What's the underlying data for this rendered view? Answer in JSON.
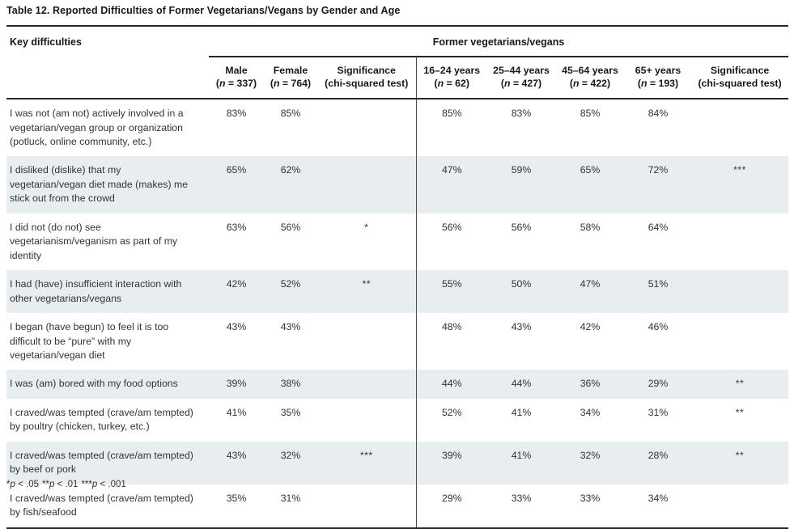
{
  "page": {
    "title": "Table 12. Reported Difficulties of Former Vegetarians/Vegans by Gender and Age",
    "footnote_items": [
      {
        "stars": "*",
        "condition": "p < .05"
      },
      {
        "stars": "**",
        "condition": "p < .01"
      },
      {
        "stars": "***",
        "condition": "p < .001"
      }
    ]
  },
  "table": {
    "row_header": "Key difficulties",
    "spanner": "Former vegetarians/vegans",
    "columns": [
      {
        "label": "Male",
        "n": "337"
      },
      {
        "label": "Female",
        "n": "764"
      },
      {
        "label": "Significance",
        "sub": "(chi-squared test)"
      },
      {
        "label": "16–24 years",
        "n": "62"
      },
      {
        "label": "25–44 years",
        "n": "427"
      },
      {
        "label": "45–64 years",
        "n": "422"
      },
      {
        "label": "65+ years",
        "n": "193"
      },
      {
        "label": "Significance",
        "sub": "(chi-squared test)"
      }
    ],
    "rows": [
      {
        "difficulty": "I was not (am not) actively involved in a vegetarian/vegan group or organization (potluck, online community, etc.)",
        "values": [
          "83%",
          "85%",
          "",
          "85%",
          "83%",
          "85%",
          "84%",
          ""
        ]
      },
      {
        "difficulty": "I disliked (dislike) that my vegetarian/vegan diet made (makes) me stick out from the crowd",
        "values": [
          "65%",
          "62%",
          "",
          "47%",
          "59%",
          "65%",
          "72%",
          "***"
        ]
      },
      {
        "difficulty": "I did not (do not) see vegetarianism/veganism as part of my identity",
        "values": [
          "63%",
          "56%",
          "*",
          "56%",
          "56%",
          "58%",
          "64%",
          ""
        ]
      },
      {
        "difficulty": "I had (have) insufficient interaction with other vegetarians/vegans",
        "values": [
          "42%",
          "52%",
          "**",
          "55%",
          "50%",
          "47%",
          "51%",
          ""
        ]
      },
      {
        "difficulty": "I began (have begun) to feel it is too difficult to be “pure” with my vegetarian/vegan diet",
        "values": [
          "43%",
          "43%",
          "",
          "48%",
          "43%",
          "42%",
          "46%",
          ""
        ]
      },
      {
        "difficulty": "I was (am) bored with my food options",
        "values": [
          "39%",
          "38%",
          "",
          "44%",
          "44%",
          "36%",
          "29%",
          "**"
        ]
      },
      {
        "difficulty": "I craved/was tempted (crave/am tempted) by poultry (chicken, turkey, etc.)",
        "values": [
          "41%",
          "35%",
          "",
          "52%",
          "41%",
          "34%",
          "31%",
          "**"
        ]
      },
      {
        "difficulty": "I craved/was tempted (crave/am tempted) by beef or pork",
        "values": [
          "43%",
          "32%",
          "***",
          "39%",
          "41%",
          "32%",
          "28%",
          "**"
        ]
      },
      {
        "difficulty": "I craved/was tempted (crave/am tempted) by fish/seafood",
        "values": [
          "35%",
          "31%",
          "",
          "29%",
          "33%",
          "33%",
          "34%",
          ""
        ]
      }
    ],
    "colors": {
      "stripe": "#e8edf0",
      "rule": "#26292c",
      "text": "#333333"
    }
  }
}
